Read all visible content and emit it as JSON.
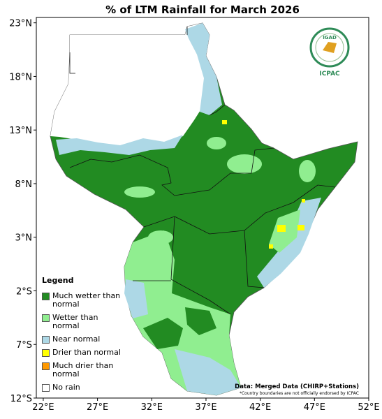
{
  "title": "% of LTM Rainfall for March 2026",
  "map": {
    "xlim": [
      21.36,
      52
    ],
    "ylim": [
      -12,
      23.5
    ],
    "xticks": [
      {
        "value": 22,
        "label": "22°E"
      },
      {
        "value": 27,
        "label": "27°E"
      },
      {
        "value": 32,
        "label": "32°E"
      },
      {
        "value": 37,
        "label": "37°E"
      },
      {
        "value": 42,
        "label": "42°E"
      },
      {
        "value": 47,
        "label": "47°E"
      },
      {
        "value": 52,
        "label": "52°E"
      }
    ],
    "yticks": [
      {
        "value": 23,
        "label": "23°N"
      },
      {
        "value": 18,
        "label": "18°N"
      },
      {
        "value": 13,
        "label": "13°N"
      },
      {
        "value": 8,
        "label": "8°N"
      },
      {
        "value": 3,
        "label": "3°N"
      },
      {
        "value": -2,
        "label": "2°S"
      },
      {
        "value": -7,
        "label": "7°S"
      },
      {
        "value": -12,
        "label": "12°S"
      }
    ]
  },
  "legend": {
    "title": "Legend",
    "items": [
      {
        "label": "Much wetter than normal",
        "color": "#228b22"
      },
      {
        "label": "Wetter than normal",
        "color": "#90ee90"
      },
      {
        "label": "Near normal",
        "color": "#add8e6"
      },
      {
        "label": "Drier than normal",
        "color": "#ffff00"
      },
      {
        "label": "Much drier than normal",
        "color": "#ff9900"
      },
      {
        "label": "No rain",
        "color": "#ffffff"
      }
    ]
  },
  "source": "Data: Merged Data (CHIRP+Stations)",
  "footnote": "*Country boundaries are not officially endorsed by ICPAC",
  "logo": {
    "name": "IGAD",
    "org": "ICPAC"
  }
}
